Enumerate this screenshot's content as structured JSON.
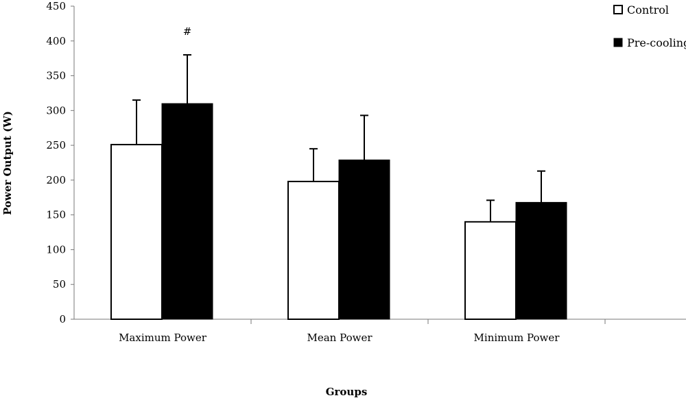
{
  "chart_data": {
    "type": "bar",
    "title": "",
    "xlabel": "Groups",
    "ylabel": "Power Output (W)",
    "ylim": [
      0,
      450
    ],
    "yticks": [
      0,
      50,
      100,
      150,
      200,
      250,
      300,
      350,
      400,
      450
    ],
    "categories": [
      "Maximum Power",
      "Mean Power",
      "Minimum Power"
    ],
    "series": [
      {
        "name": "Control",
        "color": "#ffffff",
        "values": [
          251,
          198,
          140
        ],
        "error": [
          64,
          47,
          31
        ]
      },
      {
        "name": "Pre-cooling",
        "color": "#000000",
        "values": [
          310,
          229,
          168
        ],
        "error": [
          70,
          64,
          45
        ]
      }
    ],
    "annotations": [
      {
        "text": "#",
        "category": "Maximum Power",
        "series": "Pre-cooling"
      }
    ],
    "grid": false,
    "legend_position": "top-right"
  }
}
